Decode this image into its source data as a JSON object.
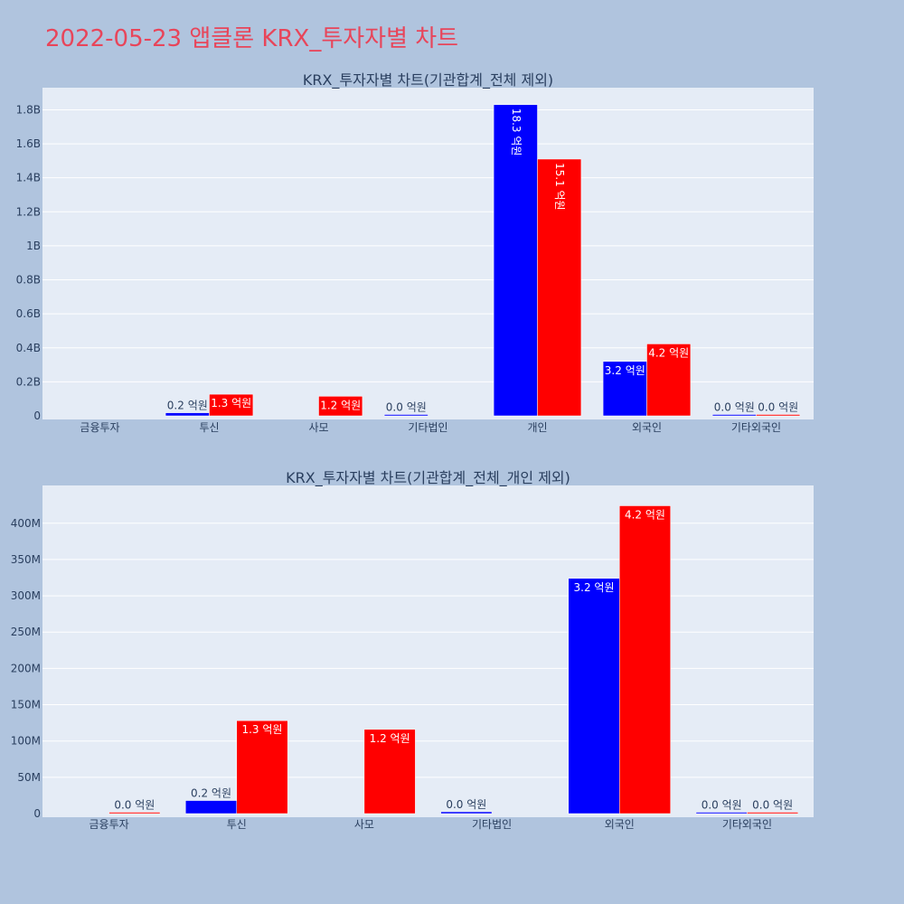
{
  "page_title": "2022-05-23 앱클론 KRX_투자자별 차트",
  "colors": {
    "background": "#b0c4de",
    "plot_bg": "#e5ecf6",
    "grid": "#ffffff",
    "title": "#e8455a",
    "text": "#2a3f5f",
    "series_blue": "#0000ff",
    "series_red": "#ff0000"
  },
  "chart_data": [
    {
      "type": "bar",
      "title": "KRX_투자자별 차트(기관합계_전체 제외)",
      "categories": [
        "금융투자",
        "투신",
        "사모",
        "기타법인",
        "개인",
        "외국인",
        "기타외국인"
      ],
      "yticks": [
        "0",
        "0.2B",
        "0.4B",
        "0.6B",
        "0.8B",
        "1B",
        "1.2B",
        "1.4B",
        "1.6B",
        "1.8B"
      ],
      "ylim": [
        0,
        1930000000
      ],
      "grid": true,
      "series": [
        {
          "color": "#0000ff",
          "values": [
            null,
            18000000,
            null,
            2000000,
            1830000000,
            320000000,
            1000000
          ],
          "labels": [
            null,
            "0.2 억원",
            null,
            "0.0 억원",
            "18.3 억원",
            "3.2 억원",
            "0.0 억원"
          ]
        },
        {
          "color": "#ff0000",
          "values": [
            null,
            127000000,
            115000000,
            null,
            1510000000,
            423000000,
            1000000
          ],
          "labels": [
            null,
            "1.3 억원",
            "1.2 억원",
            null,
            "15.1 억원",
            "4.2 억원",
            "0.0 억원"
          ]
        }
      ]
    },
    {
      "type": "bar",
      "title": "KRX_투자자별 차트(기관합계_전체_개인 제외)",
      "categories": [
        "금융투자",
        "투신",
        "사모",
        "기타법인",
        "외국인",
        "기타외국인"
      ],
      "yticks": [
        "0",
        "50M",
        "100M",
        "150M",
        "200M",
        "250M",
        "300M",
        "350M",
        "400M"
      ],
      "ylim": [
        0,
        452000000
      ],
      "grid": true,
      "series": [
        {
          "color": "#0000ff",
          "values": [
            null,
            18000000,
            null,
            2500000,
            324000000,
            1500000
          ],
          "labels": [
            null,
            "0.2 억원",
            null,
            "0.0 억원",
            "3.2 억원",
            "0.0 억원"
          ]
        },
        {
          "color": "#ff0000",
          "values": [
            500000,
            128000000,
            116000000,
            null,
            424000000,
            1500000
          ],
          "labels": [
            "0.0 억원",
            "1.3 억원",
            "1.2 억원",
            null,
            "4.2 억원",
            "0.0 억원"
          ]
        }
      ]
    }
  ]
}
